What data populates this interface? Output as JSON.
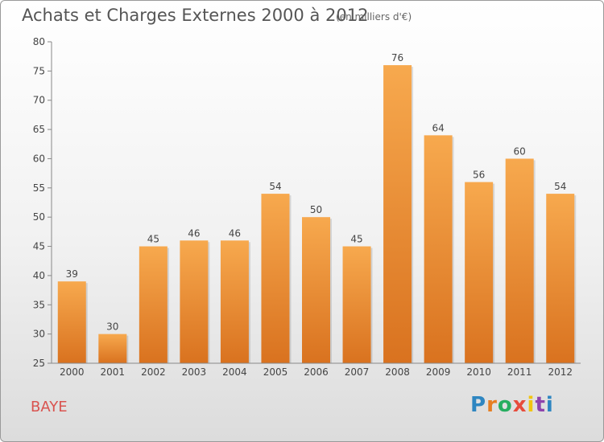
{
  "header": {
    "title": "Achats et Charges Externes 2000 à 2012",
    "subtitle": "(en milliers d'€)"
  },
  "footer": {
    "city": "BAYE",
    "logo_letters": [
      "P",
      "r",
      "o",
      "x",
      "i",
      "t",
      "i"
    ],
    "logo_colors": [
      "#2e86c1",
      "#e67e22",
      "#27ae60",
      "#e74c3c",
      "#f1c40f",
      "#8e44ad",
      "#2e86c1"
    ]
  },
  "chart_data": {
    "type": "bar",
    "categories": [
      "2000",
      "2001",
      "2002",
      "2003",
      "2004",
      "2005",
      "2006",
      "2007",
      "2008",
      "2009",
      "2010",
      "2011",
      "2012"
    ],
    "values": [
      39,
      30,
      45,
      46,
      46,
      54,
      50,
      45,
      76,
      64,
      56,
      60,
      54
    ],
    "title": "Achats et Charges Externes 2000 à 2012",
    "ylim": [
      25,
      80
    ],
    "yticks": [
      25,
      30,
      35,
      40,
      45,
      50,
      55,
      60,
      65,
      70,
      75,
      80
    ],
    "grid": false,
    "bar_color_top": "#f7a94e",
    "bar_color_bottom": "#d9721f"
  }
}
